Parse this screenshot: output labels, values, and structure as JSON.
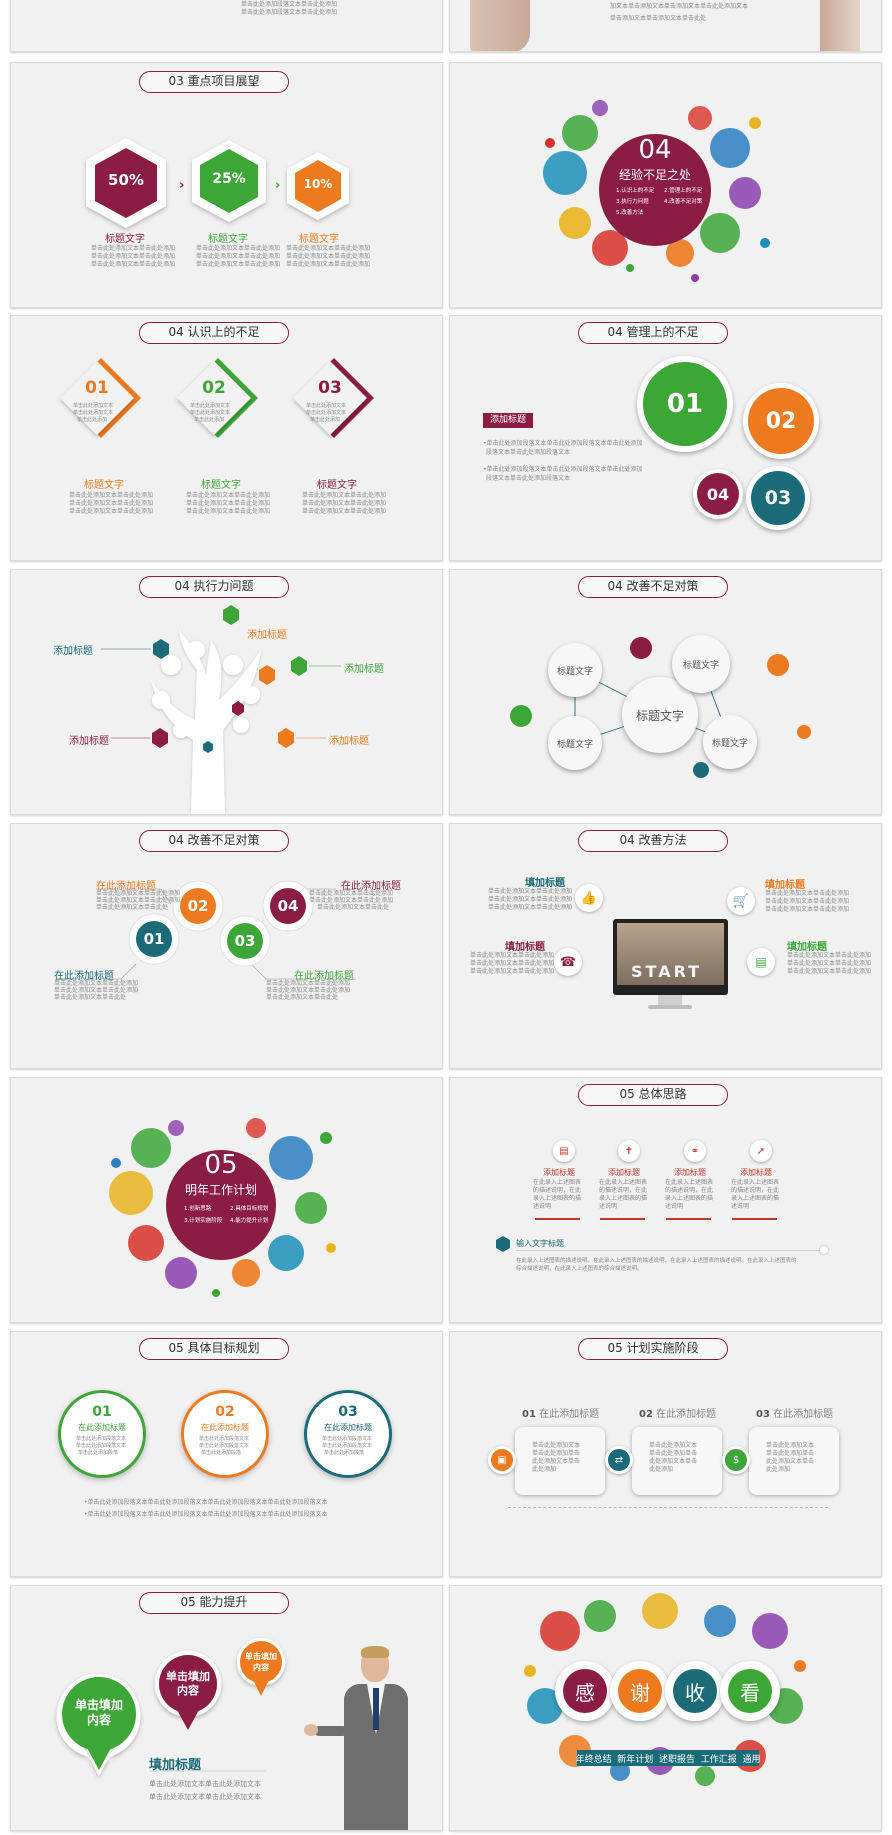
{
  "colors": {
    "maroon": "#8b1d45",
    "green": "#3ca737",
    "orange": "#ee7a1f",
    "teal": "#1c6b79",
    "gray_text": "#8a8a8a"
  },
  "top": {
    "left_text": [
      "单击此处添加段落文本单击此处添加",
      "单击此处添加段落文本单击此处添加"
    ],
    "right_text": [
      "加文本单击添加文本单击添加文本单击此处添加文本",
      "单击添加文本单击添加文本单击此处"
    ]
  },
  "s03": {
    "title": "03  重点项目展望",
    "items": [
      {
        "value": "50%",
        "label": "标题文字",
        "desc": [
          "单击此处添加文本单击此处添加",
          "单击此处添加文本单击此处添加",
          "单击此处添加文本单击此处添加"
        ]
      },
      {
        "value": "25%",
        "label": "标题文字",
        "desc": [
          "单击此处添加文本单击此处添加",
          "单击此处添加文本单击此处添加",
          "单击此处添加文本单击此处添加"
        ]
      },
      {
        "value": "10%",
        "label": "标题文字",
        "desc": [
          "单击此处添加文本单击此处添加",
          "单击此处添加文本单击此处添加",
          "单击此处添加文本单击此处添加"
        ]
      }
    ]
  },
  "s04a": {
    "number": "04",
    "title": "经验不足之处",
    "items": [
      "1.认识上的不足",
      "2.管理上的不足",
      "3.执行力问题",
      "4.改善不足对策",
      "5.改善方法"
    ]
  },
  "s04b": {
    "title": "04  认识上的不足",
    "items": [
      {
        "num": "01",
        "label": "标题文字",
        "inner": [
          "单击此处添加文本",
          "单击此处添加文本",
          "单击此处添加"
        ],
        "desc": [
          "单击此处添加文本单击此处添加",
          "单击此处添加文本单击此处添加",
          "单击此处添加文本单击此处添加"
        ]
      },
      {
        "num": "02",
        "label": "标题文字",
        "inner": [
          "单击此处添加文本",
          "单击此处添加文本",
          "单击此处添加"
        ],
        "desc": [
          "单击此处添加文本单击此处添加",
          "单击此处添加文本单击此处添加",
          "单击此处添加文本单击此处添加"
        ]
      },
      {
        "num": "03",
        "label": "标题文字",
        "inner": [
          "单击此处添加文本",
          "单击此处添加文本",
          "单击此处添加"
        ],
        "desc": [
          "单击此处添加文本单击此处添加",
          "单击此处添加文本单击此处添加",
          "单击此处添加文本单击此处添加"
        ]
      }
    ]
  },
  "s04c": {
    "title": "04  管理上的不足",
    "tag": "添加标题",
    "bullets": [
      "•单击此处添加段落文本单击此处添加段落文本单击此处添加",
      "段落文本单击此处添加段落文本",
      "•单击此处添加段落文本单击此处添加段落文本单击此处添加",
      "段落文本单击此处添加段落文本"
    ],
    "nums": [
      "01",
      "02",
      "04",
      "03"
    ]
  },
  "s04d": {
    "title": "04  执行力问题",
    "labels": [
      "添加标题",
      "添加标题",
      "添加标题",
      "添加标题",
      "添加标题"
    ]
  },
  "s04e": {
    "title": "04  改善不足对策",
    "center": "标题文字",
    "nodes": [
      "标题文字",
      "标题文字",
      "标题文字",
      "标题文字"
    ]
  },
  "s04f": {
    "title": "04  改善不足对策",
    "nums": [
      "01",
      "02",
      "03",
      "04"
    ],
    "labels": [
      "在此添加标题",
      "在此添加标题",
      "在此添加标题",
      "在此添加标题"
    ],
    "desc": [
      "单击此处添加文本单击此处添加",
      "单击此处添加文本单击此处添加",
      "单击此处添加文本单击此处"
    ]
  },
  "s04g": {
    "title": "04  改善方法",
    "labels": [
      "填加标题",
      "填加标题",
      "填加标题",
      "填加标题"
    ],
    "desc": [
      "单击此处添加文本单击此处添加",
      "单击此处添加文本单击此处添加",
      "单击此处添加文本单击此处添加"
    ],
    "screen_word": "START"
  },
  "s05a": {
    "number": "05",
    "title": "明年工作计划",
    "items": [
      "1.创新思路",
      "2.具体目标规划",
      "3.计划实施阶段",
      "4.能力提升计划"
    ]
  },
  "s05b": {
    "title": "05  总体思路",
    "items": [
      {
        "label": "添加标题",
        "desc": [
          "在此录入上述图表",
          "的描述说明，在此",
          "录入上述图表的描",
          "述说明"
        ]
      },
      {
        "label": "添加标题",
        "desc": [
          "在此录入上述图表",
          "的描述说明，在此",
          "录入上述图表的描",
          "述说明"
        ]
      },
      {
        "label": "添加标题",
        "desc": [
          "在此录入上述图表",
          "的描述说明，在此",
          "录入上述图表的描",
          "述说明"
        ]
      },
      {
        "label": "添加标题",
        "desc": [
          "在此录入上述图表",
          "的描述说明，在此",
          "录入上述图表的描",
          "述说明"
        ]
      }
    ],
    "input_label": "输入文字标题",
    "input_desc": [
      "在此录入上述图表的描述说明，在此录入上述图表的描述说明，在此录入上述图表的描述说明。在此录入上述图表的",
      "综合描述说明，在此录入上述图表的综合描述说明。"
    ]
  },
  "s05c": {
    "title": "05  具体目标规划",
    "items": [
      {
        "num": "01",
        "label": "在此添加标题",
        "desc": [
          "单击此处添加段落文本",
          "单击此处添加段落文本",
          "单击此处添加段落"
        ]
      },
      {
        "num": "02",
        "label": "在此添加标题",
        "desc": [
          "单击此处添加段落文本",
          "单击此处添加段落文本",
          "单击此处添加段落"
        ]
      },
      {
        "num": "03",
        "label": "在此添加标题",
        "desc": [
          "单击此处添加段落文本",
          "单击此处添加段落文本",
          "单击此处添加段落"
        ]
      }
    ],
    "bullets": [
      "•单击此处添加段落文本单击此处添加段落文本单击此处添加段落文本单击此处添加段落文本",
      "•单击此处添加段落文本单击此处添加段落文本单击此处添加段落文本单击此处添加段落文本"
    ]
  },
  "s05d": {
    "title": "05  计划实施阶段",
    "steps": [
      {
        "num": "01",
        "label": "在此添加标题",
        "desc": [
          "单击此处添加文本",
          "单击此处添加单击",
          "此处添加文本单击",
          "此处添加"
        ]
      },
      {
        "num": "02",
        "label": "在此添加标题",
        "desc": [
          "单击此处添加文本",
          "单击此处添加单击",
          "此处添加文本单击",
          "此处添加"
        ]
      },
      {
        "num": "03",
        "label": "在此添加标题",
        "desc": [
          "单击此处添加文本",
          "单击此处添加单击",
          "此处添加文本单击",
          "此处添加"
        ]
      }
    ]
  },
  "s05e": {
    "title": "05  能力提升",
    "bubbles": [
      "单击填加内容",
      "单击填加内容",
      "单击填加内容"
    ],
    "heading": "填加标题",
    "desc": [
      "单击此处添加文本单击此处添加文本",
      "单击此处添加文本单击此处添加文本"
    ]
  },
  "end": {
    "chars": [
      "感",
      "谢",
      "收",
      "看"
    ],
    "banner": "年终总结  新年计划  述职报告  工作汇报  通用"
  }
}
